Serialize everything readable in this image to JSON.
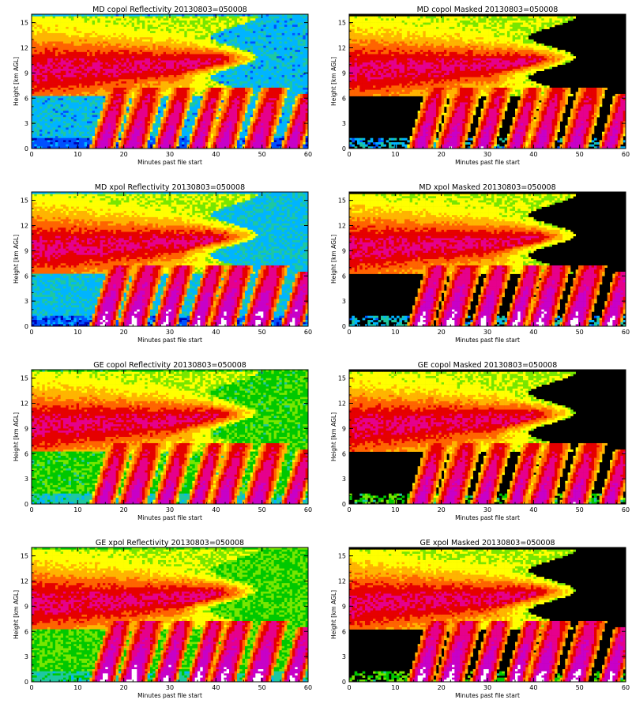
{
  "colors": {
    "background": "#ffffff",
    "mask": "#000000",
    "axis": "#000000",
    "palette": [
      "#0000b4",
      "#0050ff",
      "#00b4ff",
      "#1ec8a0",
      "#00c800",
      "#78e600",
      "#ffff00",
      "#ffb400",
      "#ff6400",
      "#e60000",
      "#e6008c",
      "#c800c8",
      "#ffffff"
    ]
  },
  "chart_data": [
    {
      "type": "heatmap",
      "title": "MD copol Reflectivity 20130803=050008",
      "xlabel": "Minutes past file start",
      "ylabel": "Height [km AGL]",
      "xlim": [
        0,
        60
      ],
      "ylim": [
        0,
        16
      ],
      "xticks": [
        "0",
        "10",
        "20",
        "30",
        "40",
        "50",
        "60"
      ],
      "yticks": [
        "0",
        "3",
        "6",
        "9",
        "12",
        "15"
      ],
      "masked": false,
      "background_level": 2.2,
      "peak_boost": 0
    },
    {
      "type": "heatmap",
      "title": "MD copol Masked 20130803=050008",
      "xlabel": "Minutes past file start",
      "ylabel": "Height [km AGL]",
      "xlim": [
        0,
        60
      ],
      "ylim": [
        0,
        16
      ],
      "xticks": [
        "0",
        "10",
        "20",
        "30",
        "40",
        "50",
        "60"
      ],
      "yticks": [
        "0",
        "3",
        "6",
        "9",
        "12",
        "15"
      ],
      "masked": true,
      "background_level": 2.2,
      "peak_boost": 0
    },
    {
      "type": "heatmap",
      "title": "MD xpol Reflectivity 20130803=050008",
      "xlabel": "Minutes past file start",
      "ylabel": "Height [km AGL]",
      "xlim": [
        0,
        60
      ],
      "ylim": [
        0,
        16
      ],
      "xticks": [
        "0",
        "10",
        "20",
        "30",
        "40",
        "50",
        "60"
      ],
      "yticks": [
        "0",
        "3",
        "6",
        "9",
        "12",
        "15"
      ],
      "masked": false,
      "background_level": 2.3,
      "peak_boost": 0.6
    },
    {
      "type": "heatmap",
      "title": "MD xpol Masked 20130803=050008",
      "xlabel": "Minutes past file start",
      "ylabel": "Height [km AGL]",
      "xlim": [
        0,
        60
      ],
      "ylim": [
        0,
        16
      ],
      "xticks": [
        "0",
        "10",
        "20",
        "30",
        "40",
        "50",
        "60"
      ],
      "yticks": [
        "0",
        "3",
        "6",
        "9",
        "12",
        "15"
      ],
      "masked": true,
      "background_level": 2.3,
      "peak_boost": 0.6
    },
    {
      "type": "heatmap",
      "title": "GE copol Reflectivity 20130803=050008",
      "xlabel": "Minutes past file start",
      "ylabel": "Height [km AGL]",
      "xlim": [
        0,
        60
      ],
      "ylim": [
        0,
        16
      ],
      "xticks": [
        "0",
        "10",
        "20",
        "30",
        "40",
        "50",
        "60"
      ],
      "yticks": [
        "0",
        "3",
        "6",
        "9",
        "12",
        "15"
      ],
      "masked": false,
      "background_level": 4.2,
      "peak_boost": 0
    },
    {
      "type": "heatmap",
      "title": "GE copol Masked 20130803=050008",
      "xlabel": "Minutes past file start",
      "ylabel": "Height [km AGL]",
      "xlim": [
        0,
        60
      ],
      "ylim": [
        0,
        16
      ],
      "xticks": [
        "0",
        "10",
        "20",
        "30",
        "40",
        "50",
        "60"
      ],
      "yticks": [
        "0",
        "3",
        "6",
        "9",
        "12",
        "15"
      ],
      "masked": true,
      "background_level": 4.2,
      "peak_boost": 0
    },
    {
      "type": "heatmap",
      "title": "GE xpol Reflectivity 20130803=050008",
      "xlabel": "Minutes past file start",
      "ylabel": "Height [km AGL]",
      "xlim": [
        0,
        60
      ],
      "ylim": [
        0,
        16
      ],
      "xticks": [
        "0",
        "10",
        "20",
        "30",
        "40",
        "50",
        "60"
      ],
      "yticks": [
        "0",
        "3",
        "6",
        "9",
        "12",
        "15"
      ],
      "masked": false,
      "background_level": 4.4,
      "peak_boost": 0.6
    },
    {
      "type": "heatmap",
      "title": "GE xpol Masked 20130803=050008",
      "xlabel": "Minutes past file start",
      "ylabel": "Height [km AGL]",
      "xlim": [
        0,
        60
      ],
      "ylim": [
        0,
        16
      ],
      "xticks": [
        "0",
        "10",
        "20",
        "30",
        "40",
        "50",
        "60"
      ],
      "yticks": [
        "0",
        "3",
        "6",
        "9",
        "12",
        "15"
      ],
      "masked": true,
      "background_level": 4.4,
      "peak_boost": 0.6
    }
  ]
}
